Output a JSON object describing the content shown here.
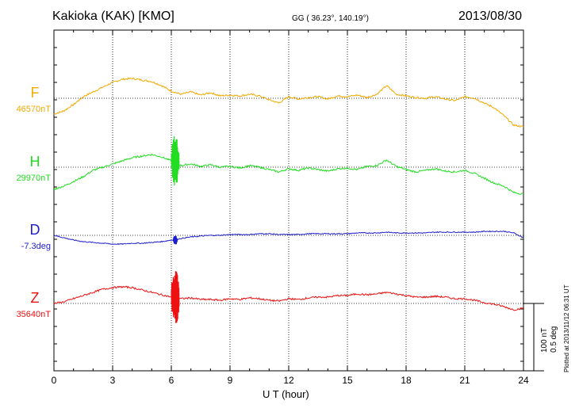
{
  "header": {
    "title": "Kakioka (KAK)  [KMO]",
    "coordinates": "GG ( 36.23°, 140.19°)",
    "date": "2013/08/30"
  },
  "scale": {
    "line1": "100 nT",
    "line2": "0.5 deg"
  },
  "plotted_note": "Plotted at 2013/11/12 06:31  UT",
  "chart_data": {
    "type": "line",
    "title": "Kakioka (KAK)  [KMO]  2013/08/30",
    "xlabel": "U T (hour)",
    "xlim": [
      0,
      24
    ],
    "x_ticks": [
      0,
      3,
      6,
      9,
      12,
      15,
      18,
      21,
      24
    ],
    "x_tick_labels": [
      "0",
      "3",
      "6",
      "9",
      "12",
      "15",
      "18",
      "21",
      "24"
    ],
    "scale_bar": "100 nT / 0.5 deg per scale division",
    "series": [
      {
        "name": "F",
        "baseline_label": "46570nT",
        "color": "#f2a900",
        "unit": "nT",
        "x": [
          0,
          0.5,
          1,
          1.5,
          2,
          2.5,
          3,
          3.5,
          4,
          4.5,
          5,
          5.5,
          6,
          6.5,
          7,
          7.5,
          8,
          8.5,
          9,
          9.5,
          10,
          10.5,
          11,
          11.5,
          12,
          12.5,
          13,
          13.5,
          14,
          14.5,
          15,
          15.5,
          16,
          16.5,
          17,
          17.5,
          18,
          18.5,
          19,
          19.5,
          20,
          20.5,
          21,
          21.5,
          22,
          22.5,
          23,
          23.5,
          24
        ],
        "values": [
          -20,
          -16,
          -8,
          2,
          8,
          14,
          20,
          24,
          25,
          23,
          21,
          16,
          9,
          5,
          8,
          4,
          7,
          3,
          4,
          3,
          5,
          3,
          -2,
          -6,
          2,
          -1,
          1,
          2,
          -1,
          3,
          2,
          4,
          1,
          5,
          16,
          5,
          3,
          1,
          0,
          2,
          -1,
          -3,
          2,
          0,
          -6,
          -12,
          -22,
          -34,
          -36
        ]
      },
      {
        "name": "H",
        "baseline_label": "29970nT",
        "color": "#22dd22",
        "unit": "nT",
        "x": [
          0,
          0.5,
          1,
          1.5,
          2,
          2.5,
          3,
          3.5,
          4,
          4.5,
          5,
          5.5,
          6,
          6.5,
          7,
          7.5,
          8,
          8.5,
          9,
          9.5,
          10,
          10.5,
          11,
          11.5,
          12,
          12.5,
          13,
          13.5,
          14,
          14.5,
          15,
          15.5,
          16,
          16.5,
          17,
          17.5,
          18,
          18.5,
          19,
          19.5,
          20,
          20.5,
          21,
          21.5,
          22,
          22.5,
          23,
          23.5,
          24
        ],
        "values": [
          -28,
          -24,
          -18,
          -12,
          -4,
          0,
          4,
          8,
          12,
          14,
          16,
          13,
          8,
          2,
          4,
          1,
          3,
          0,
          1,
          -1,
          2,
          0,
          -3,
          -6,
          -2,
          -4,
          -1,
          -3,
          -5,
          -2,
          -1,
          -3,
          1,
          2,
          9,
          1,
          -3,
          -6,
          -4,
          -2,
          -5,
          -6,
          -4,
          -8,
          -14,
          -20,
          -24,
          -32,
          -34
        ],
        "event": {
          "start_hour": 6.0,
          "end_hour": 6.4,
          "amplitude": 34
        }
      },
      {
        "name": "D",
        "baseline_label": "-7.3deg",
        "color": "#1e1ecc",
        "unit": "deg",
        "x": [
          0,
          0.5,
          1,
          1.5,
          2,
          2.5,
          3,
          3.5,
          4,
          4.5,
          5,
          5.5,
          6,
          6.5,
          7,
          7.5,
          8,
          8.5,
          9,
          9.5,
          10,
          10.5,
          11,
          11.5,
          12,
          12.5,
          13,
          13.5,
          14,
          14.5,
          15,
          15.5,
          16,
          16.5,
          17,
          17.5,
          18,
          18.5,
          19,
          19.5,
          20,
          20.5,
          21,
          21.5,
          22,
          22.5,
          23,
          23.5,
          24
        ],
        "values": [
          0,
          -3,
          -6,
          -8,
          -9,
          -10,
          -11,
          -11,
          -10,
          -10,
          -9,
          -8,
          -6,
          -4,
          -2,
          -1,
          0,
          0,
          1,
          1,
          1,
          2,
          2,
          1,
          1,
          1,
          2,
          2,
          2,
          2,
          2,
          3,
          3,
          3,
          4,
          3,
          3,
          3,
          3,
          4,
          4,
          4,
          4,
          4,
          5,
          5,
          5,
          3,
          -3
        ],
        "event": {
          "start_hour": 6.1,
          "end_hour": 6.3,
          "amplitude": 7
        }
      },
      {
        "name": "Z",
        "baseline_label": "35640nT",
        "color": "#ee1111",
        "unit": "nT",
        "x": [
          0,
          0.5,
          1,
          1.5,
          2,
          2.5,
          3,
          3.5,
          4,
          4.5,
          5,
          5.5,
          6,
          6.5,
          7,
          7.5,
          8,
          8.5,
          9,
          9.5,
          10,
          10.5,
          11,
          11.5,
          12,
          12.5,
          13,
          13.5,
          14,
          14.5,
          15,
          15.5,
          16,
          16.5,
          17,
          17.5,
          18,
          18.5,
          19,
          19.5,
          20,
          20.5,
          21,
          21.5,
          22,
          22.5,
          23,
          23.5,
          24
        ],
        "values": [
          0,
          2,
          6,
          10,
          14,
          18,
          20,
          21,
          20,
          17,
          14,
          11,
          8,
          6,
          7,
          5,
          5,
          4,
          6,
          5,
          7,
          6,
          4,
          3,
          6,
          5,
          7,
          8,
          8,
          10,
          10,
          12,
          11,
          12,
          14,
          12,
          10,
          8,
          8,
          9,
          8,
          6,
          6,
          4,
          1,
          -1,
          -4,
          -8,
          -6
        ],
        "event": {
          "start_hour": 6.0,
          "end_hour": 6.4,
          "amplitude": 38
        }
      }
    ]
  }
}
